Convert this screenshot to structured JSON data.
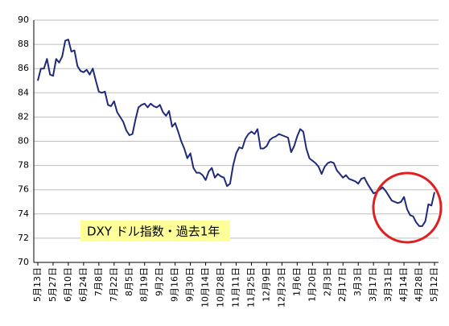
{
  "chart_data": {
    "type": "line",
    "annotation": "DXY ドル指数・過去1年",
    "categories": [
      "5月13日",
      null,
      null,
      null,
      null,
      "5月27日",
      null,
      null,
      null,
      null,
      "6月10日",
      null,
      null,
      null,
      null,
      "6月24日",
      null,
      null,
      null,
      null,
      "7月8日",
      null,
      null,
      null,
      null,
      "7月22日",
      null,
      null,
      null,
      null,
      "8月5日",
      null,
      null,
      null,
      null,
      "8月19日",
      null,
      null,
      null,
      null,
      "9月2日",
      null,
      null,
      null,
      null,
      "9月16日",
      null,
      null,
      null,
      null,
      "9月30日",
      null,
      null,
      null,
      null,
      "10月14日",
      null,
      null,
      null,
      null,
      "10月28日",
      null,
      null,
      null,
      null,
      "11月11日",
      null,
      null,
      null,
      null,
      "11月25日",
      null,
      null,
      null,
      null,
      "12月9日",
      null,
      null,
      null,
      null,
      "12月23日",
      null,
      null,
      null,
      null,
      "1月6日",
      null,
      null,
      null,
      null,
      "1月20日",
      null,
      null,
      null,
      null,
      "2月3日",
      null,
      null,
      null,
      null,
      "2月17日",
      null,
      null,
      null,
      null,
      "3月3日",
      null,
      null,
      null,
      null,
      "3月17日",
      null,
      null,
      null,
      null,
      "3月31日",
      null,
      null,
      null,
      null,
      "4月14日",
      null,
      null,
      null,
      null,
      "4月28日",
      null,
      null,
      null,
      null,
      "5月12日"
    ],
    "values": [
      85.0,
      86.0,
      86.0,
      86.8,
      85.5,
      85.4,
      86.8,
      86.5,
      87.0,
      88.3,
      88.4,
      87.4,
      87.5,
      86.2,
      85.8,
      85.7,
      85.9,
      85.5,
      86.0,
      85.0,
      84.1,
      84.0,
      84.1,
      83.0,
      82.9,
      83.3,
      82.4,
      82.0,
      81.6,
      80.9,
      80.5,
      80.6,
      81.8,
      82.8,
      83.0,
      83.1,
      82.8,
      83.1,
      82.9,
      82.8,
      83.0,
      82.4,
      82.1,
      82.5,
      81.2,
      81.5,
      80.8,
      80.0,
      79.4,
      78.6,
      79.0,
      77.8,
      77.4,
      77.4,
      77.2,
      76.8,
      77.5,
      77.8,
      77.0,
      77.3,
      77.1,
      77.0,
      76.3,
      76.5,
      78.0,
      79.0,
      79.5,
      79.4,
      80.2,
      80.6,
      80.8,
      80.6,
      81.0,
      79.4,
      79.4,
      79.6,
      80.1,
      80.3,
      80.4,
      80.6,
      80.5,
      80.4,
      80.3,
      79.1,
      79.6,
      80.4,
      81.0,
      80.8,
      79.4,
      78.6,
      78.4,
      78.2,
      77.9,
      77.3,
      77.9,
      78.2,
      78.3,
      78.2,
      77.6,
      77.3,
      77.0,
      77.2,
      76.9,
      76.8,
      76.7,
      76.5,
      76.9,
      77.0,
      76.5,
      76.1,
      75.7,
      75.8,
      76.0,
      76.2,
      75.9,
      75.5,
      75.1,
      75.0,
      74.9,
      75.0,
      75.4,
      74.4,
      73.9,
      73.8,
      73.3,
      73.0,
      73.0,
      73.4,
      74.8,
      74.7,
      75.8
    ],
    "color": "#1f2a7a",
    "ylim": [
      70,
      90
    ],
    "yticks": [
      70,
      72,
      74,
      76,
      78,
      80,
      82,
      84,
      86,
      88,
      90
    ],
    "grid": true
  }
}
